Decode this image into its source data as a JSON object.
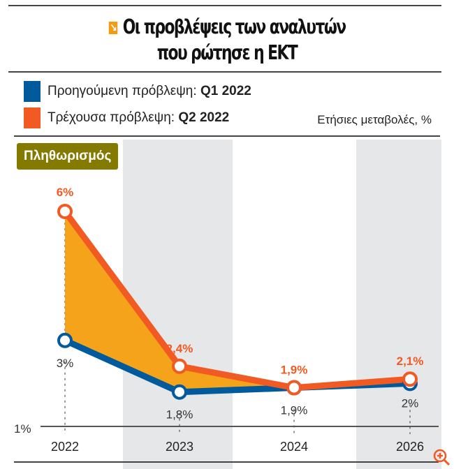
{
  "title_line1": "Οι προβλέψεις των αναλυτών",
  "title_line2": "που ρώτησε η ΕΚΤ",
  "legend": [
    {
      "label": "Προηγούμενη πρόβλεψη:",
      "period": "Q1 2022",
      "color": "#005a9c"
    },
    {
      "label": "Τρέχουσα πρόβλεψη:",
      "period": "Q2 2022",
      "color": "#f15a22"
    }
  ],
  "units": "Ετήσιες μεταβολές, %",
  "panel_label": "Πληθωρισμός",
  "chart_data": {
    "type": "line",
    "categories": [
      "2022",
      "2023",
      "2024",
      "2026"
    ],
    "series": [
      {
        "name": "Προηγούμενη πρόβλεψη: Q1 2022",
        "values": [
          3,
          1.8,
          1.9,
          2
        ],
        "labels": [
          "3%",
          "1,8%",
          "1,9%",
          "2%"
        ],
        "color": "#005a9c"
      },
      {
        "name": "Τρέχουσα πρόβλεψη: Q2 2022",
        "values": [
          6,
          2.4,
          1.9,
          2.1
        ],
        "labels": [
          "6%",
          "2,4%",
          "1,9%",
          "2,1%"
        ],
        "color": "#f15a22"
      }
    ],
    "fill_between_color": "#f5a31a",
    "baseline_label": "1%",
    "ylim": [
      1,
      6
    ]
  }
}
